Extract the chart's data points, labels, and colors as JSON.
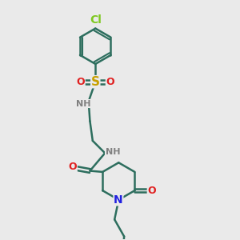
{
  "background_color": "#eaeaea",
  "bond_color": "#2d6e5e",
  "bond_width": 1.8,
  "atom_colors": {
    "Cl": "#7ec820",
    "S": "#c8a000",
    "O": "#e02020",
    "N": "#2020e0",
    "NH": "#808080"
  },
  "font_size": 9,
  "figsize": [
    3.0,
    3.0
  ],
  "dpi": 100
}
